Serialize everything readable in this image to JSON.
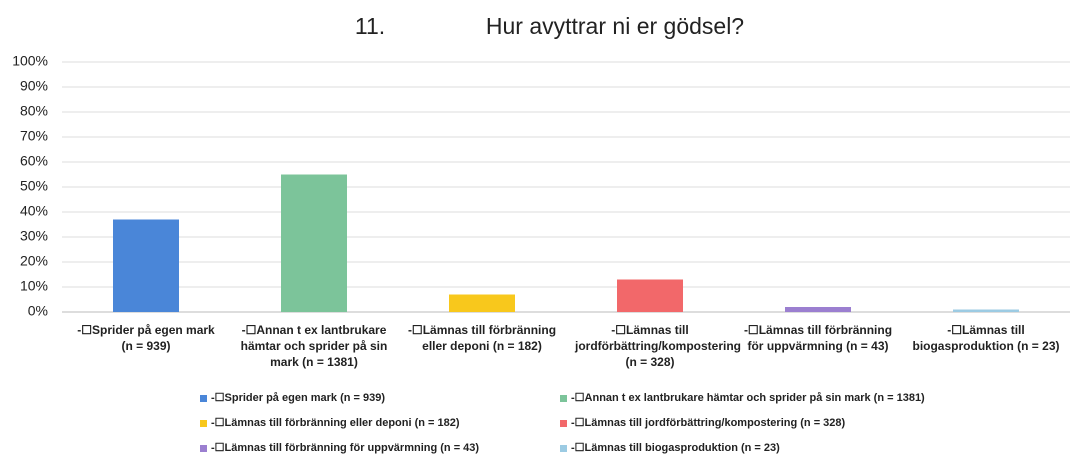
{
  "chart_data": {
    "type": "bar",
    "number": "11.",
    "title": "Hur avyttrar ni er gödsel?",
    "categories": [
      "-☐Sprider på egen mark (n = 939)",
      "-☐Annan t ex lantbrukare hämtar och sprider på sin mark (n = 1381)",
      "-☐Lämnas till förbränning eller deponi (n = 182)",
      "-☐Lämnas till jordförbättring/kompostering (n = 328)",
      "-☐Lämnas till förbränning för uppvärmning (n = 43)",
      "-☐Lämnas till biogasproduktion (n = 23)"
    ],
    "values": [
      37,
      55,
      7,
      13,
      2,
      1
    ],
    "colors": [
      "#4a86d8",
      "#7cc49a",
      "#f8c81c",
      "#f2686a",
      "#9b7fd0",
      "#9ccbe3"
    ],
    "ylim": [
      0,
      100
    ],
    "yticks": [
      {
        "value": 0,
        "label": "0%"
      },
      {
        "value": 10,
        "label": "10%"
      },
      {
        "value": 20,
        "label": "20%"
      },
      {
        "value": 30,
        "label": "30%"
      },
      {
        "value": 40,
        "label": "40%"
      },
      {
        "value": 50,
        "label": "50%"
      },
      {
        "value": 60,
        "label": "60%"
      },
      {
        "value": 70,
        "label": "70%"
      },
      {
        "value": 80,
        "label": "80%"
      },
      {
        "value": 90,
        "label": "90%"
      },
      {
        "value": 100,
        "label": "100%"
      }
    ],
    "grid": true
  }
}
